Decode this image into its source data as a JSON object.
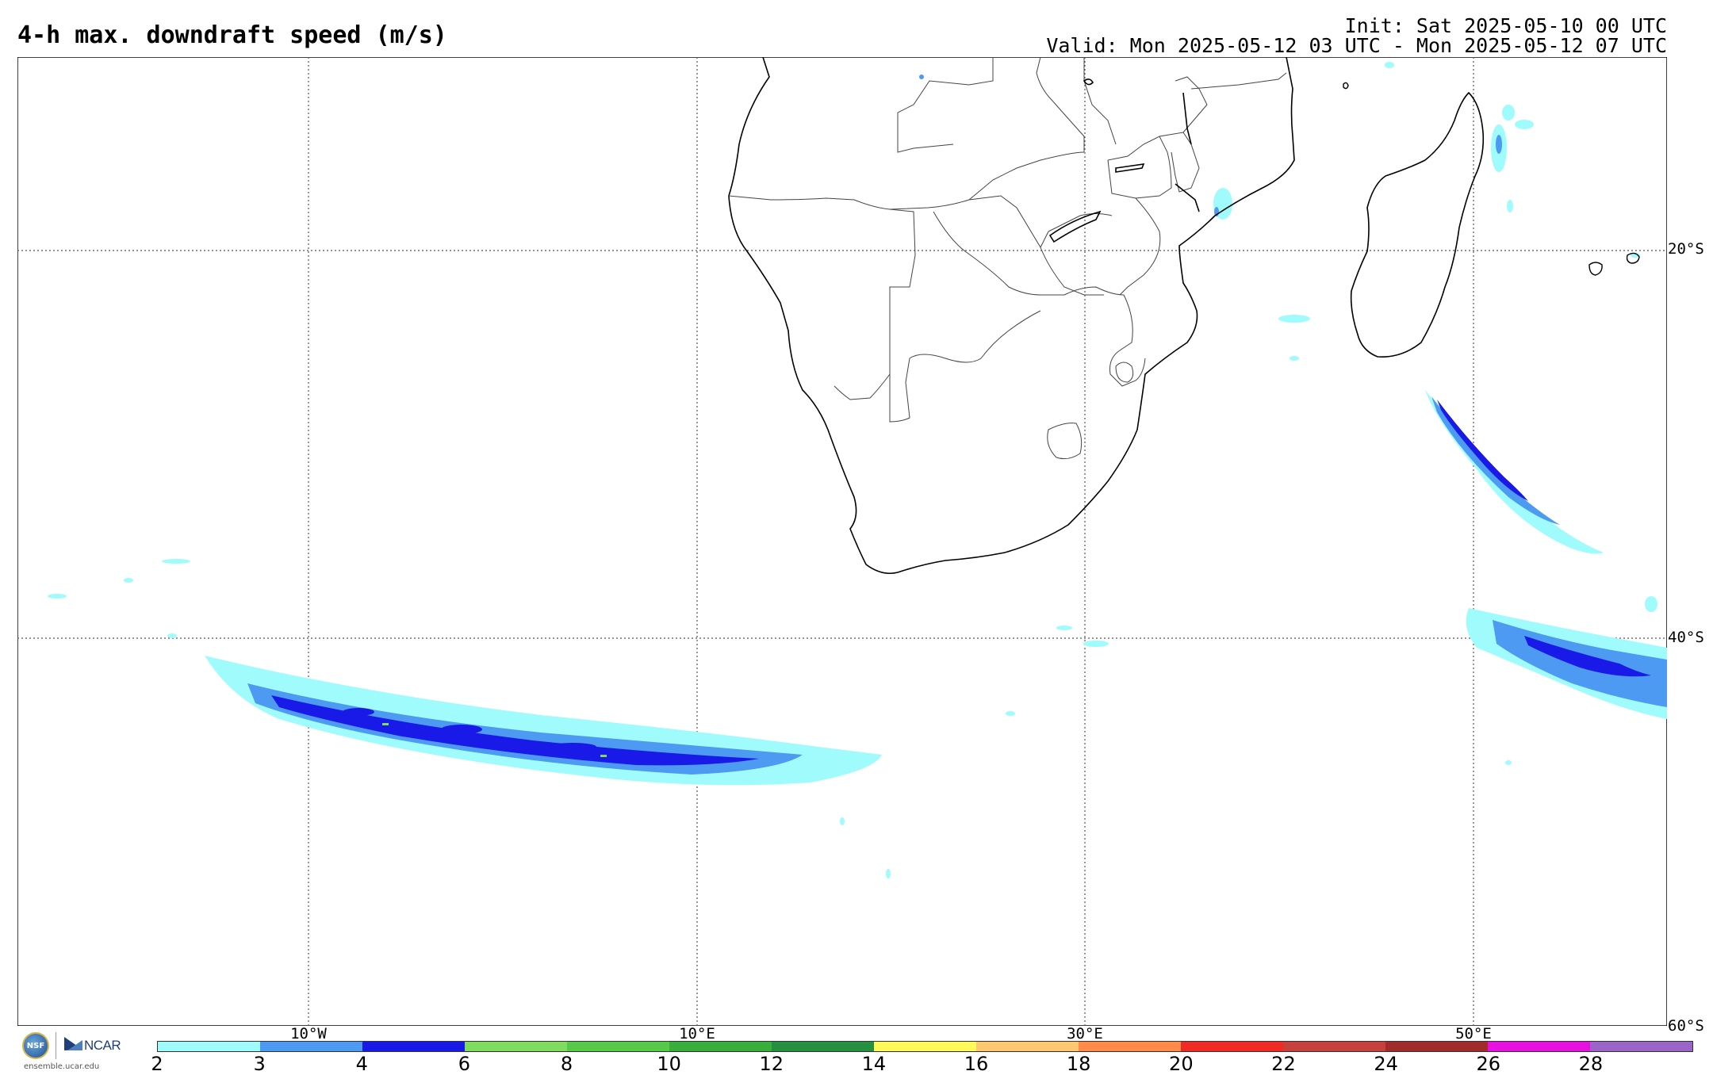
{
  "header": {
    "title": "4-h max. downdraft speed (m/s)",
    "init": "Init: Sat 2025-05-10 00 UTC",
    "valid": "Valid: Mon 2025-05-12 03 UTC - Mon 2025-05-12 07 UTC"
  },
  "map": {
    "region": "Southern Africa and South Atlantic / SW Indian Ocean",
    "lon_range": [
      -17.5,
      67.5
    ],
    "lat_range": [
      -60,
      -10
    ],
    "lat_labels": [
      "20°S",
      "40°S",
      "60°S"
    ],
    "lon_labels": [
      "10°W",
      "10°E",
      "30°E",
      "50°E"
    ],
    "gridlines": "dotted"
  },
  "colorbar": {
    "ticks": [
      "2",
      "3",
      "4",
      "6",
      "8",
      "10",
      "12",
      "14",
      "16",
      "18",
      "20",
      "22",
      "24",
      "26",
      "28"
    ],
    "colors": [
      "#a0fcfc",
      "#4d9af2",
      "#1919e8",
      "#7fdc5f",
      "#56c84a",
      "#3aae3a",
      "#259040",
      "#fffa5a",
      "#ffc870",
      "#ff8a4a",
      "#f02a24",
      "#c8403c",
      "#a02c2c",
      "#e610e0",
      "#9a64c8"
    ]
  },
  "logos": {
    "url": "ensemble.ucar.edu",
    "nsf": "NSF",
    "ncar": "NCAR"
  }
}
